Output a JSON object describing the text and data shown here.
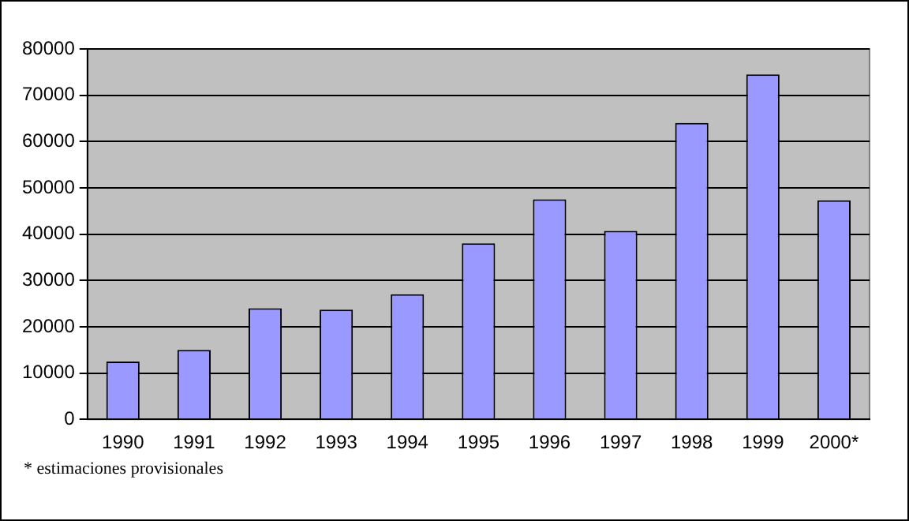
{
  "chart_data": {
    "type": "bar",
    "categories": [
      "1990",
      "1991",
      "1992",
      "1993",
      "1994",
      "1995",
      "1996",
      "1997",
      "1998",
      "1999",
      "2000*"
    ],
    "values": [
      12500,
      15000,
      24000,
      23700,
      27000,
      38000,
      47500,
      40700,
      64000,
      74500,
      47300
    ],
    "color": "#9999ff",
    "ylim": [
      0,
      80000
    ],
    "yticks": [
      0,
      10000,
      20000,
      30000,
      40000,
      50000,
      60000,
      70000,
      80000
    ],
    "grid": "y",
    "legend": false,
    "annotations": [
      "* estimaciones provisionales"
    ]
  }
}
